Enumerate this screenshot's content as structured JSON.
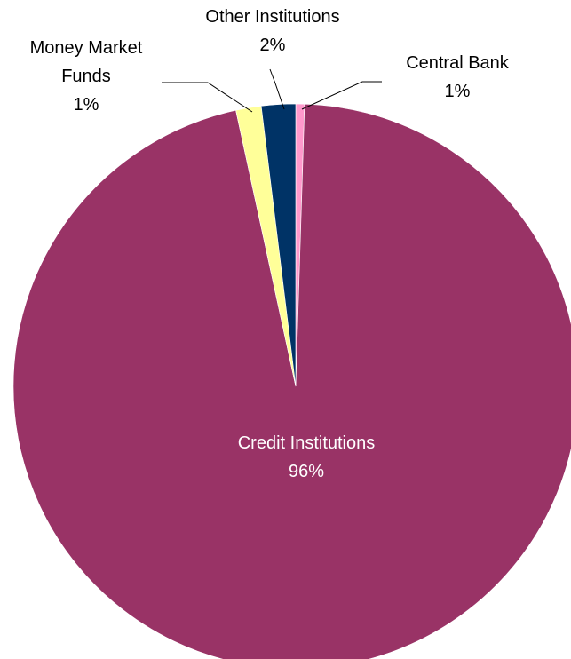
{
  "chart_data": {
    "type": "pie",
    "title": "",
    "slices": [
      {
        "name": "Central Bank",
        "label_lines": [
          "Central Bank",
          "1%"
        ],
        "value": 0.5,
        "percent_label": "1%",
        "color": "#ff99cc"
      },
      {
        "name": "Credit Institutions",
        "label_lines": [
          "Credit Institutions",
          "96%"
        ],
        "value": 96.1,
        "percent_label": "96%",
        "color": "#993366"
      },
      {
        "name": "Money Market Funds",
        "label_lines": [
          "Money Market",
          "Funds",
          "1%"
        ],
        "value": 1.45,
        "percent_label": "1%",
        "color": "#ffff99"
      },
      {
        "name": "Other Institutions",
        "label_lines": [
          "Other Institutions",
          "2%"
        ],
        "value": 1.95,
        "percent_label": "2%",
        "color": "#003366"
      }
    ],
    "start_angle_deg": 0,
    "direction": "clockwise",
    "legend": "none",
    "labels": "outside with leader lines (largest slice inside)"
  }
}
